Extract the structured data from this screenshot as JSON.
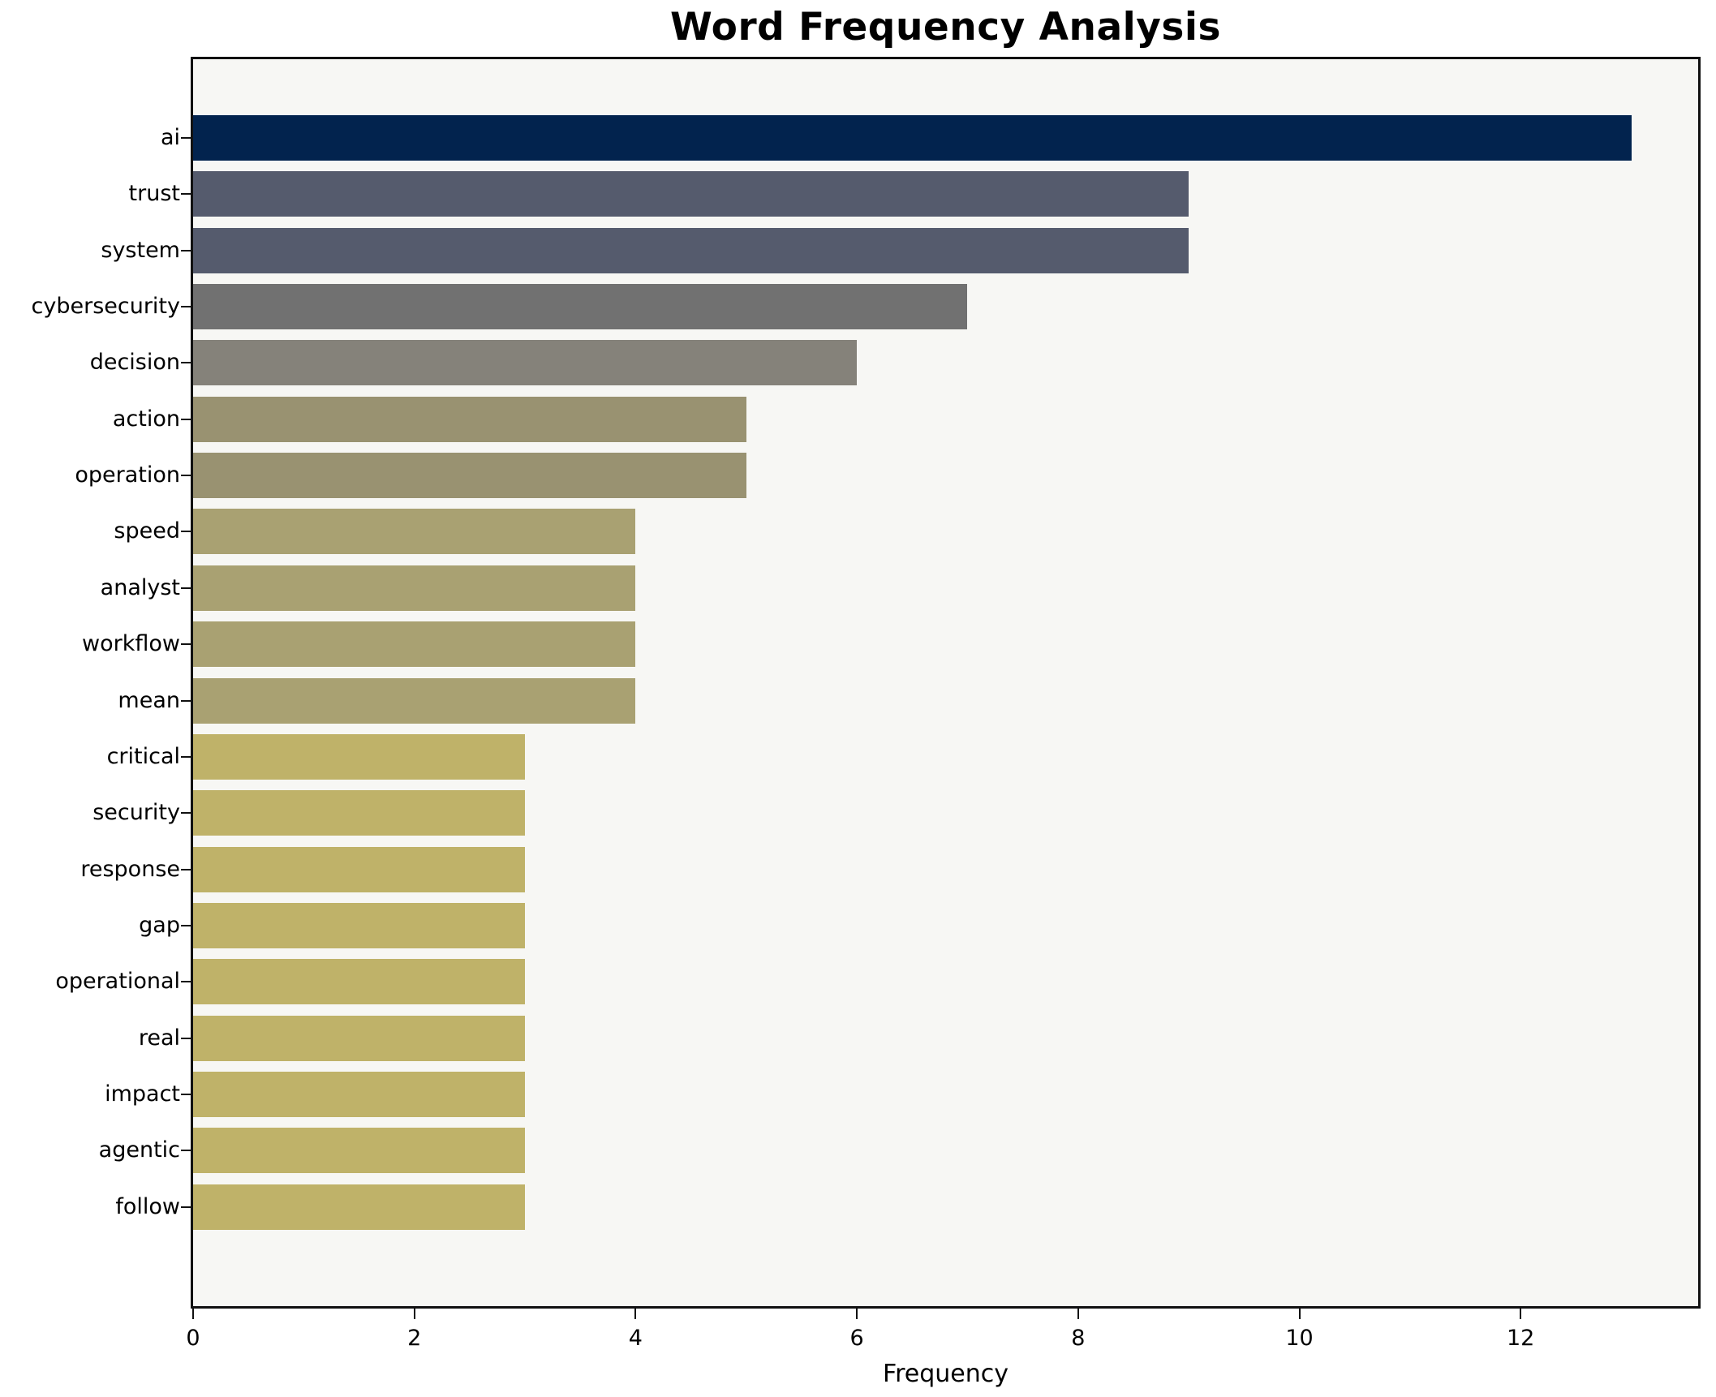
{
  "chart_data": {
    "type": "bar",
    "orientation": "horizontal",
    "title": "Word Frequency Analysis",
    "xlabel": "Frequency",
    "ylabel": "",
    "categories": [
      "ai",
      "trust",
      "system",
      "cybersecurity",
      "decision",
      "action",
      "operation",
      "speed",
      "analyst",
      "workflow",
      "mean",
      "critical",
      "security",
      "response",
      "gap",
      "operational",
      "real",
      "impact",
      "agentic",
      "follow"
    ],
    "values": [
      13,
      9,
      9,
      7,
      6,
      5,
      5,
      4,
      4,
      4,
      4,
      3,
      3,
      3,
      3,
      3,
      3,
      3,
      3,
      3
    ],
    "bar_colors": [
      "#02234e",
      "#555b6d",
      "#555b6d",
      "#717171",
      "#85827a",
      "#999271",
      "#999271",
      "#a9a172",
      "#a9a172",
      "#a9a172",
      "#a9a172",
      "#bfb269",
      "#bfb269",
      "#bfb269",
      "#bfb269",
      "#bfb269",
      "#bfb269",
      "#bfb269",
      "#bfb269",
      "#bfb269"
    ],
    "xticks": [
      0,
      2,
      4,
      6,
      8,
      10,
      12
    ],
    "xlim": [
      0,
      13.6
    ],
    "grid": false,
    "legend": "none",
    "plot_background": "#f7f7f4",
    "figure_background": "#ffffff",
    "spine_color": "#111111",
    "text_color": "#000000"
  }
}
